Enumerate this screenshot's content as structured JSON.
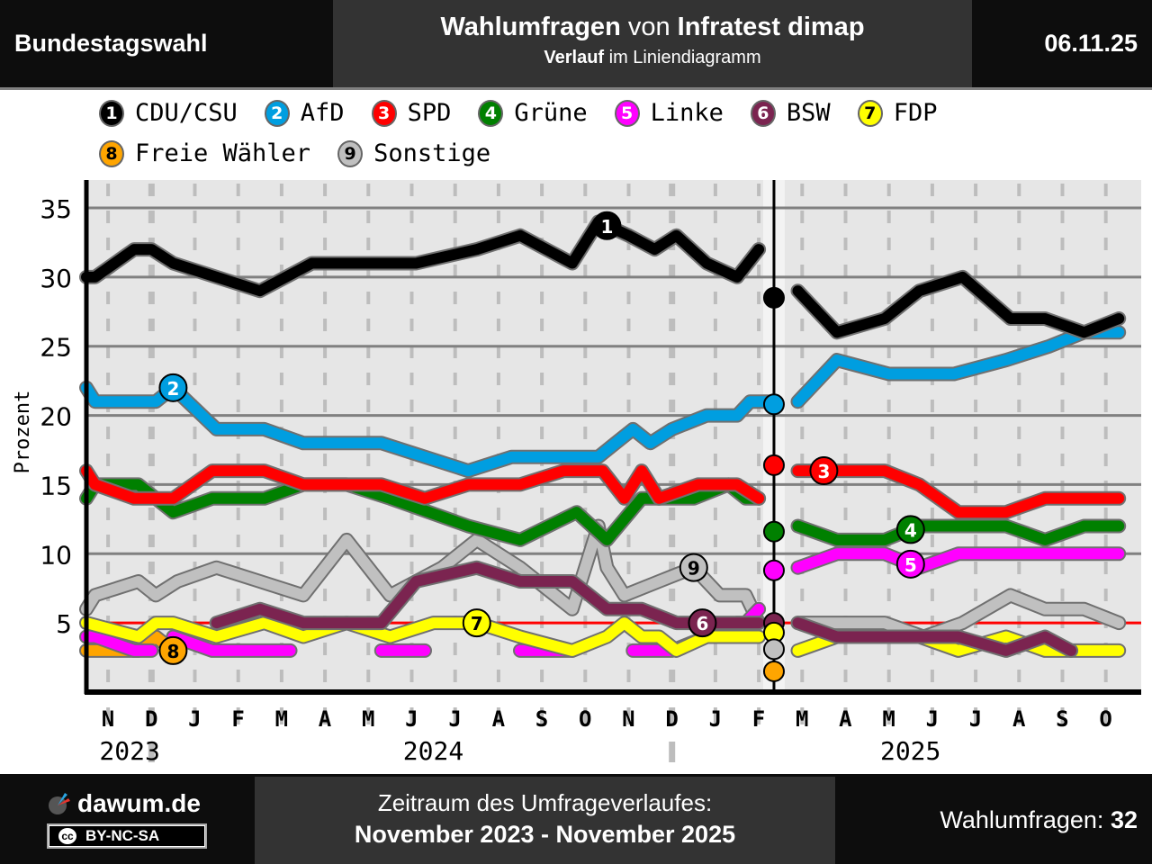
{
  "header": {
    "left_title": "Bundestagswahl",
    "title_bold1": "Wahlumfragen",
    "title_mid": " von ",
    "title_bold2": "Infratest dimap",
    "subtitle_bold": "Verlauf",
    "subtitle_rest": " im Liniendiagramm",
    "date": "06.11.25"
  },
  "legend": [
    {
      "num": "1",
      "name": "CDU/CSU",
      "color": "#000000",
      "text_color": "#ffffff"
    },
    {
      "num": "2",
      "name": "AfD",
      "color": "#009ee0",
      "text_color": "#ffffff"
    },
    {
      "num": "3",
      "name": "SPD",
      "color": "#ff0000",
      "text_color": "#ffffff"
    },
    {
      "num": "4",
      "name": "Grüne",
      "color": "#008000",
      "text_color": "#ffffff"
    },
    {
      "num": "5",
      "name": "Linke",
      "color": "#ff00ff",
      "text_color": "#ffffff"
    },
    {
      "num": "6",
      "name": "BSW",
      "color": "#7b2450",
      "text_color": "#ffffff"
    },
    {
      "num": "7",
      "name": "FDP",
      "color": "#ffff00",
      "text_color": "#000000"
    },
    {
      "num": "8",
      "name": "Freie Wähler",
      "color": "#ffa500",
      "text_color": "#000000"
    },
    {
      "num": "9",
      "name": "Sonstige",
      "color": "#c0c0c0",
      "text_color": "#000000"
    }
  ],
  "chart_data": {
    "type": "line",
    "title": "Wahlumfragen von Infratest dimap",
    "xlabel": "",
    "ylabel": "Prozent",
    "ylim": [
      0,
      37
    ],
    "yticks": [
      5,
      10,
      15,
      20,
      25,
      30,
      35
    ],
    "grid": true,
    "threshold": 5,
    "election_marker": "2025-02",
    "x_month_labels": [
      "N",
      "D",
      "J",
      "F",
      "M",
      "A",
      "M",
      "J",
      "J",
      "A",
      "S",
      "O",
      "N",
      "D",
      "J",
      "F",
      "M",
      "A",
      "M",
      "J",
      "J",
      "A",
      "S",
      "O"
    ],
    "x_year_labels": [
      {
        "label": "2023",
        "month_index": 0.5
      },
      {
        "label": "2024",
        "month_index": 7.5
      },
      {
        "label": "2025",
        "month_index": 18.5
      }
    ],
    "x_range_months": [
      0,
      24
    ],
    "election_results": [
      {
        "party": "CDU/CSU",
        "value": 28.5
      },
      {
        "party": "AfD",
        "value": 20.8
      },
      {
        "party": "SPD",
        "value": 16.4
      },
      {
        "party": "Grüne",
        "value": 11.6
      },
      {
        "party": "Linke",
        "value": 8.8
      },
      {
        "party": "BSW",
        "value": 5.0
      },
      {
        "party": "FDP",
        "value": 4.3
      },
      {
        "party": "Sonstige",
        "value": 3.1
      },
      {
        "party": "Freie Wähler",
        "value": 1.5
      }
    ],
    "series": [
      {
        "name": "CDU/CSU",
        "label_at": 12,
        "segments": [
          [
            [
              0,
              30
            ],
            [
              0.2,
              30
            ],
            [
              1.1,
              32
            ],
            [
              1.5,
              32
            ],
            [
              2,
              31
            ],
            [
              3,
              30
            ],
            [
              4,
              29
            ],
            [
              5.2,
              31
            ],
            [
              6.4,
              31
            ],
            [
              7.6,
              31
            ],
            [
              9,
              32
            ],
            [
              10,
              33
            ],
            [
              11.2,
              31
            ],
            [
              11.8,
              34
            ],
            [
              12.5,
              33
            ],
            [
              13.1,
              32
            ],
            [
              13.6,
              33
            ],
            [
              14.3,
              31
            ],
            [
              15,
              30
            ],
            [
              15.5,
              32
            ]
          ],
          [
            [
              16.4,
              29
            ],
            [
              17.3,
              26
            ],
            [
              18.4,
              27
            ],
            [
              19.2,
              29
            ],
            [
              20.2,
              30
            ],
            [
              21.3,
              27
            ],
            [
              22.1,
              27
            ],
            [
              23,
              26
            ],
            [
              23.8,
              27
            ]
          ]
        ]
      },
      {
        "name": "AfD",
        "label_at": 2,
        "segments": [
          [
            [
              0,
              22
            ],
            [
              0.2,
              21
            ],
            [
              1.6,
              21
            ],
            [
              2,
              22
            ],
            [
              3,
              19
            ],
            [
              4.1,
              19
            ],
            [
              5,
              18
            ],
            [
              6.8,
              18
            ],
            [
              8.8,
              16
            ],
            [
              9.8,
              17
            ],
            [
              11.8,
              17
            ],
            [
              12.2,
              18
            ],
            [
              12.6,
              19
            ],
            [
              13,
              18
            ],
            [
              13.5,
              19
            ],
            [
              14.3,
              20
            ],
            [
              15,
              20
            ],
            [
              15.3,
              21
            ],
            [
              15.7,
              21
            ]
          ],
          [
            [
              16.4,
              21
            ],
            [
              17.3,
              24
            ],
            [
              18.5,
              23
            ],
            [
              20,
              23
            ],
            [
              21.2,
              24
            ],
            [
              22.2,
              25
            ],
            [
              23,
              26
            ],
            [
              23.8,
              26
            ]
          ]
        ]
      },
      {
        "name": "SPD",
        "label_at": 17,
        "segments": [
          [
            [
              0,
              16
            ],
            [
              0.2,
              15
            ],
            [
              1.1,
              14
            ],
            [
              2,
              14
            ],
            [
              2.9,
              16
            ],
            [
              4.1,
              16
            ],
            [
              5,
              15
            ],
            [
              6.8,
              15
            ],
            [
              7.8,
              14
            ],
            [
              8.8,
              15
            ],
            [
              10,
              15
            ],
            [
              11,
              16
            ],
            [
              11.9,
              16
            ],
            [
              12.4,
              14
            ],
            [
              12.8,
              16
            ],
            [
              13.2,
              14
            ],
            [
              14.1,
              15
            ],
            [
              15,
              15
            ],
            [
              15.5,
              14
            ]
          ],
          [
            [
              16.4,
              16
            ],
            [
              18.4,
              16
            ],
            [
              19.2,
              15
            ],
            [
              20.1,
              13
            ],
            [
              21.2,
              13
            ],
            [
              22.1,
              14
            ],
            [
              23.8,
              14
            ]
          ]
        ]
      },
      {
        "name": "Grüne",
        "label_at": 19,
        "segments": [
          [
            [
              0,
              14
            ],
            [
              0.2,
              15
            ],
            [
              1.2,
              15
            ],
            [
              2,
              13
            ],
            [
              2.9,
              14
            ],
            [
              4.1,
              14
            ],
            [
              5,
              15
            ],
            [
              6,
              15
            ],
            [
              7,
              14
            ],
            [
              8.8,
              12
            ],
            [
              10,
              11
            ],
            [
              11.3,
              13
            ],
            [
              12,
              11
            ],
            [
              12.8,
              14
            ],
            [
              14,
              14
            ],
            [
              14.8,
              15
            ],
            [
              15.2,
              14
            ],
            [
              15.5,
              14
            ]
          ],
          [
            [
              16.4,
              12
            ],
            [
              17.3,
              11
            ],
            [
              18.4,
              11
            ],
            [
              19.2,
              12
            ],
            [
              21.2,
              12
            ],
            [
              22.1,
              11
            ],
            [
              23,
              12
            ],
            [
              23.8,
              12
            ]
          ]
        ]
      },
      {
        "name": "Linke",
        "label_at": 19,
        "segments": [
          [
            [
              0,
              4
            ],
            [
              0.2,
              4
            ],
            [
              1.1,
              3
            ],
            [
              1.5,
              3
            ]
          ],
          [
            [
              2,
              4
            ],
            [
              2.9,
              3
            ],
            [
              4.7,
              3
            ]
          ],
          [
            [
              6.8,
              3
            ],
            [
              7.8,
              3
            ]
          ],
          [
            [
              10,
              3
            ],
            [
              11.2,
              3
            ]
          ],
          [
            [
              12.6,
              3
            ],
            [
              13.5,
              3
            ],
            [
              14.3,
              4
            ],
            [
              15,
              5
            ],
            [
              15.2,
              5
            ],
            [
              15.5,
              6
            ]
          ],
          [
            [
              16.4,
              9
            ],
            [
              17.3,
              10
            ],
            [
              18.4,
              10
            ],
            [
              19.2,
              9
            ],
            [
              20.1,
              10
            ],
            [
              23.8,
              10
            ]
          ]
        ]
      },
      {
        "name": "BSW",
        "label_at": 14.2,
        "segments": [
          [
            [
              3,
              5
            ],
            [
              4,
              6
            ],
            [
              5,
              5
            ],
            [
              6.8,
              5
            ],
            [
              7.6,
              8
            ],
            [
              9,
              9
            ],
            [
              10,
              8
            ],
            [
              11.2,
              8
            ],
            [
              12,
              6
            ],
            [
              12.8,
              6
            ],
            [
              13.6,
              5
            ],
            [
              14.3,
              5
            ],
            [
              15,
              5
            ],
            [
              15.5,
              5
            ]
          ],
          [
            [
              16.4,
              5
            ],
            [
              17.3,
              4
            ],
            [
              20.1,
              4
            ],
            [
              21.2,
              3
            ],
            [
              22.1,
              4
            ],
            [
              22.7,
              3
            ]
          ]
        ]
      },
      {
        "name": "FDP",
        "label_at": 9,
        "segments": [
          [
            [
              0,
              5
            ],
            [
              1.2,
              4
            ],
            [
              1.6,
              5
            ],
            [
              2,
              5
            ],
            [
              3,
              4
            ],
            [
              4.1,
              5
            ],
            [
              5,
              4
            ],
            [
              6,
              5
            ],
            [
              7,
              4
            ],
            [
              8,
              5
            ],
            [
              9,
              5
            ],
            [
              10,
              4
            ],
            [
              11.2,
              3
            ],
            [
              12,
              4
            ],
            [
              12.4,
              5
            ],
            [
              12.8,
              4
            ],
            [
              13.2,
              4
            ],
            [
              13.6,
              3
            ],
            [
              14.3,
              4
            ],
            [
              15.5,
              4
            ]
          ],
          [
            [
              16.4,
              3
            ],
            [
              17.3,
              4
            ],
            [
              19.2,
              4
            ],
            [
              20.1,
              3
            ],
            [
              21.2,
              4
            ],
            [
              22.1,
              3
            ],
            [
              23.8,
              3
            ]
          ]
        ]
      },
      {
        "name": "Freie Wähler",
        "label_at": 2,
        "segments": [
          [
            [
              0,
              3
            ],
            [
              1.2,
              3
            ],
            [
              1.6,
              4
            ],
            [
              2,
              3
            ]
          ],
          [
            [
              4.7,
              3
            ]
          ],
          [
            [
              6.8,
              3
            ]
          ],
          [
            [
              11.2,
              3
            ]
          ]
        ]
      },
      {
        "name": "Sonstige",
        "label_at": 14,
        "segments": [
          [
            [
              0,
              6
            ],
            [
              0.2,
              7
            ],
            [
              1.2,
              8
            ],
            [
              1.6,
              7
            ],
            [
              2.1,
              8
            ],
            [
              3,
              9
            ],
            [
              4,
              8
            ],
            [
              5,
              7
            ],
            [
              6,
              11
            ],
            [
              7,
              7
            ],
            [
              8.2,
              9
            ],
            [
              9,
              11
            ],
            [
              10,
              9
            ],
            [
              11.2,
              6
            ],
            [
              11.8,
              12
            ],
            [
              12,
              9
            ],
            [
              12.4,
              7
            ],
            [
              13.2,
              8
            ],
            [
              14,
              9
            ],
            [
              14.6,
              7
            ],
            [
              15.2,
              7
            ],
            [
              15.5,
              5
            ]
          ],
          [
            [
              16.4,
              5
            ],
            [
              18.4,
              5
            ],
            [
              19.3,
              4
            ],
            [
              20.2,
              5
            ],
            [
              21.3,
              7
            ],
            [
              22.1,
              6
            ],
            [
              23,
              6
            ],
            [
              23.8,
              5
            ]
          ]
        ]
      }
    ]
  },
  "footer": {
    "logo_text": "dawum.de",
    "license": "BY-NC-SA",
    "cc_mark": "cc",
    "period_label": "Zeitraum des Umfrageverlaufes:",
    "period_value": "November 2023 - November 2025",
    "count_label": "Wahlumfragen: ",
    "count_value": "32"
  }
}
